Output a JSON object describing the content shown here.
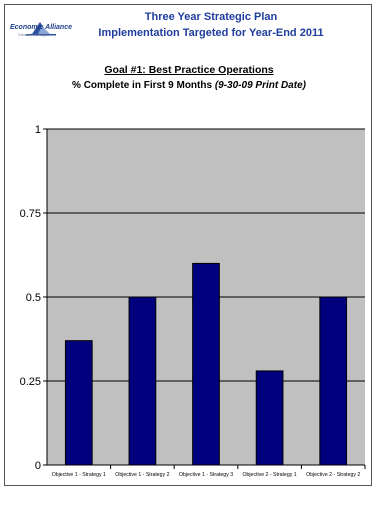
{
  "header": {
    "logo_name": "Economic Alliance",
    "logo_sub": "Greater Port Region",
    "title_line1": "Three Year Strategic Plan",
    "title_line2": "Implementation Targeted for Year-End 2011"
  },
  "chart_data": {
    "type": "bar",
    "title": "Goal #1: Best Practice Operations",
    "subtitle_main": "% Complete in First 9 Months ",
    "subtitle_note": "(9-30-09 Print Date)",
    "categories": [
      "Objective 1 - Strategy 1",
      "Objective 1 - Strategy 2",
      "Objective 1 - Strategy 3",
      "Objective 2 - Strategy 1",
      "Objective 2 - Strategy 2"
    ],
    "values": [
      0.37,
      0.5,
      0.6,
      0.28,
      0.5
    ],
    "ylim": [
      0,
      1
    ],
    "yticks": [
      0,
      0.25,
      0.5,
      0.75,
      1
    ],
    "ytick_labels": [
      "0",
      "0.25",
      "0.5",
      "0.75",
      "1"
    ],
    "grid": true,
    "colors": {
      "bar": "#00007f",
      "bar_edge": "#000000",
      "plot_bg": "#c0c0c0",
      "grid": "#000000"
    }
  }
}
